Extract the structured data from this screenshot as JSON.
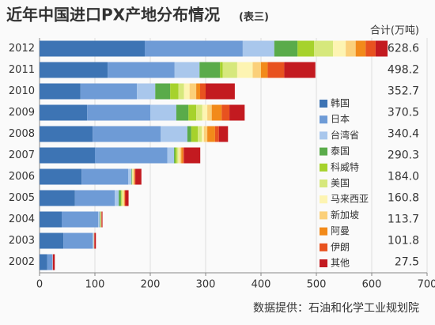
{
  "chart_data": {
    "type": "stacked-bar-horizontal",
    "title": "近年中国进口PX产地分布情况",
    "subtitle": "(表三)",
    "source": "数据提供：石油和化学工业规划院",
    "categories": [
      "2012",
      "2011",
      "2010",
      "2009",
      "2008",
      "2007",
      "2006",
      "2005",
      "2004",
      "2003",
      "2002"
    ],
    "series": [
      {
        "name": "韩国",
        "color": "#3d74b4",
        "values": [
          190,
          123,
          74,
          86,
          96,
          100,
          76,
          64,
          40,
          43,
          14
        ]
      },
      {
        "name": "日本",
        "color": "#6e9bd6",
        "values": [
          177,
          121,
          102,
          114,
          123,
          131,
          84,
          72,
          66,
          53,
          9
        ]
      },
      {
        "name": "台湾省",
        "color": "#a9c7ec",
        "values": [
          57,
          45,
          33,
          47,
          48,
          12,
          6,
          7,
          3,
          2,
          1
        ]
      },
      {
        "name": "泰国",
        "color": "#5aab4a",
        "values": [
          42,
          37,
          27,
          22,
          7,
          2,
          1,
          4,
          1,
          0,
          0
        ]
      },
      {
        "name": "科威特",
        "color": "#a6d22c",
        "values": [
          30,
          5,
          15,
          14,
          12,
          3,
          0,
          1,
          0,
          0,
          0
        ]
      },
      {
        "name": "美国",
        "color": "#d6e87c",
        "values": [
          34,
          26,
          10,
          11,
          7,
          3,
          1,
          2,
          1,
          0,
          0
        ]
      },
      {
        "name": "马来西亚",
        "color": "#fdf4b2",
        "values": [
          23,
          28,
          10,
          9,
          4,
          2,
          1,
          1,
          0,
          0,
          0
        ]
      },
      {
        "name": "新加坡",
        "color": "#fbd07a",
        "values": [
          18,
          15,
          12,
          8,
          6,
          3,
          2,
          2,
          1,
          1,
          0
        ]
      },
      {
        "name": "阿曼",
        "color": "#f28a1a",
        "values": [
          18,
          12,
          7,
          18,
          14,
          3,
          1,
          1,
          0,
          0,
          0
        ]
      },
      {
        "name": "伊朗",
        "color": "#e8521f",
        "values": [
          18,
          30,
          10,
          14,
          7,
          2,
          1,
          1,
          0,
          0,
          0
        ]
      },
      {
        "name": "其他",
        "color": "#c31a20",
        "values": [
          21.6,
          56.2,
          52.7,
          27.5,
          16.4,
          29.3,
          11,
          5.8,
          1.7,
          2.8,
          3.5
        ]
      }
    ],
    "totals": {
      "name": "合计(万吨)",
      "values": [
        628.6,
        498.2,
        352.7,
        370.5,
        340.4,
        290.3,
        184.0,
        160.8,
        113.7,
        101.8,
        27.5
      ],
      "value_labels": [
        "628.6",
        "498.2",
        "352.7",
        "370.5",
        "340.4",
        "290.3",
        "184.0",
        "160.8",
        "113.7",
        "101.8",
        "27.5"
      ]
    },
    "xlim": [
      0,
      700
    ],
    "xticks": [
      0,
      100,
      200,
      300,
      400,
      500,
      600,
      700
    ],
    "grid": true,
    "legend": "right"
  }
}
